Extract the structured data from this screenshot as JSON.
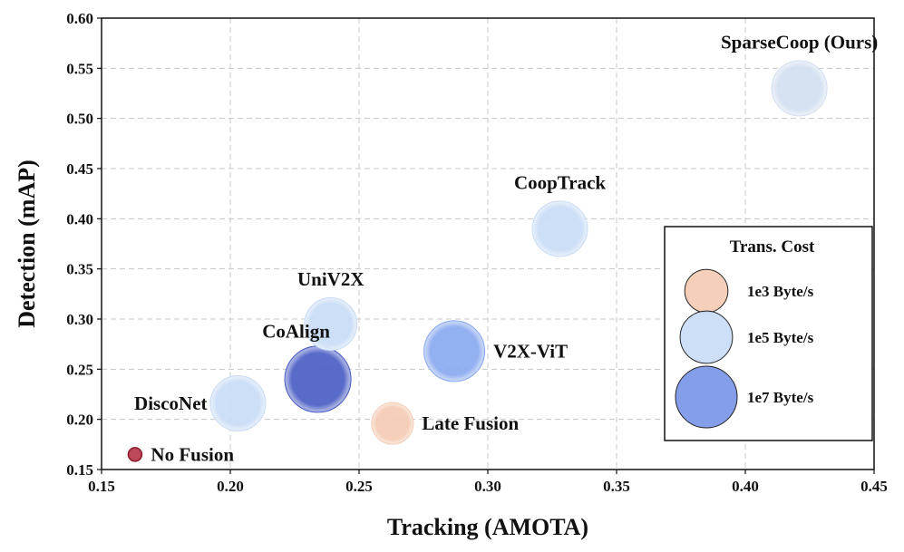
{
  "chart_data": {
    "type": "scatter",
    "title": "",
    "xlabel": "Tracking (AMOTA)",
    "ylabel": "Detection (mAP)",
    "xlim": [
      0.15,
      0.45
    ],
    "ylim": [
      0.15,
      0.6
    ],
    "xticks": [
      0.15,
      0.2,
      0.25,
      0.3,
      0.35,
      0.4,
      0.45
    ],
    "yticks": [
      0.15,
      0.2,
      0.25,
      0.3,
      0.35,
      0.4,
      0.45,
      0.5,
      0.55,
      0.6
    ],
    "xtick_labels": [
      "0.15",
      "0.20",
      "0.25",
      "0.30",
      "0.35",
      "0.40",
      "0.45"
    ],
    "ytick_labels": [
      "0.15",
      "0.20",
      "0.25",
      "0.30",
      "0.35",
      "0.40",
      "0.45",
      "0.50",
      "0.55",
      "0.60"
    ],
    "grid": true,
    "points": [
      {
        "name": "No Fusion",
        "x": 0.163,
        "y": 0.165,
        "size_rel": 0.25,
        "color": "#b0283c",
        "label_pos": "right"
      },
      {
        "name": "DiscoNet",
        "x": 0.203,
        "y": 0.216,
        "size_rel": 1.0,
        "color": "#c9dcf6",
        "label_pos": "left"
      },
      {
        "name": "CoAlign",
        "x": 0.234,
        "y": 0.24,
        "size_rel": 1.2,
        "color": "#4b5ec4",
        "label_pos": "above-left"
      },
      {
        "name": "UniV2X",
        "x": 0.239,
        "y": 0.295,
        "size_rel": 0.95,
        "color": "#c9dcf6",
        "label_pos": "above"
      },
      {
        "name": "Late Fusion",
        "x": 0.263,
        "y": 0.196,
        "size_rel": 0.75,
        "color": "#f4cbb3",
        "label_pos": "right"
      },
      {
        "name": "V2X-ViT",
        "x": 0.287,
        "y": 0.268,
        "size_rel": 1.1,
        "color": "#8aa9f0",
        "label_pos": "right"
      },
      {
        "name": "CoopTrack",
        "x": 0.328,
        "y": 0.39,
        "size_rel": 1.0,
        "color": "#c9dcf6",
        "label_pos": "above"
      },
      {
        "name": "SparseCoop (Ours)",
        "x": 0.421,
        "y": 0.53,
        "size_rel": 1.0,
        "color": "#d3dff0",
        "label_pos": "above"
      }
    ],
    "legend": {
      "title": "Trans. Cost",
      "placement": "right",
      "entries": [
        {
          "label": "1e3 Byte/s",
          "color": "#f4cbb3",
          "size_rel": 0.7
        },
        {
          "label": "1e5 Byte/s",
          "color": "#c9dcf6",
          "size_rel": 0.85
        },
        {
          "label": "1e7 Byte/s",
          "color": "#7b96e8",
          "size_rel": 1.0
        }
      ]
    }
  }
}
